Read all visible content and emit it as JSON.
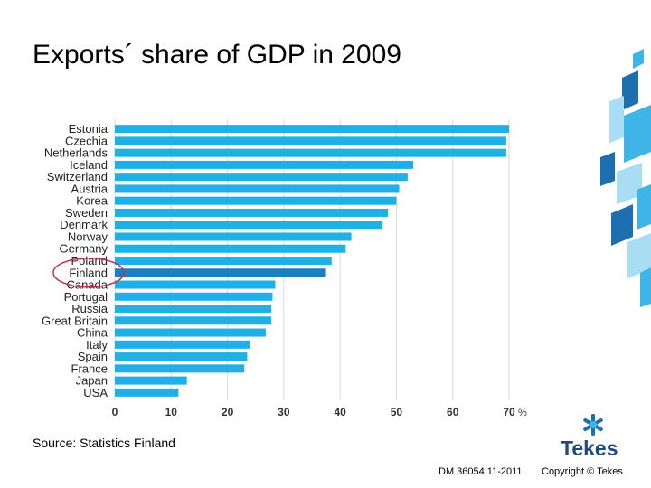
{
  "title": "Exports´ share of GDP in 2009",
  "source": "Source: Statistics Finland",
  "footer": {
    "doc_id": "DM 36054 11-2011",
    "copyright": "Copyright © Tekes"
  },
  "logo": {
    "word": "Tekes"
  },
  "colors": {
    "bar": "#1fb1e6",
    "bar_highlight": "#1b7ec2",
    "grid": "#d9d9d9",
    "highlight_ring": "#c0304a",
    "deco_light": "#a9ddf3",
    "deco_mid": "#3fb4e6",
    "deco_dark": "#1e6fb0"
  },
  "chart_data": {
    "type": "bar",
    "orientation": "horizontal",
    "title": "Exports´ share of GDP in 2009",
    "xlabel": "%",
    "xlim": [
      0,
      70
    ],
    "xticks": [
      0,
      10,
      20,
      30,
      40,
      50,
      60,
      70
    ],
    "xtick_labels": [
      "0",
      "10",
      "20",
      "30",
      "40",
      "50",
      "60",
      "70"
    ],
    "unit": "%",
    "grid": true,
    "highlighted": "Finland",
    "categories": [
      "Estonia",
      "Czechia",
      "Netherlands",
      "Iceland",
      "Switzerland",
      "Austria",
      "Korea",
      "Sweden",
      "Denmark",
      "Norway",
      "Germany",
      "Poland",
      "Finland",
      "Canada",
      "Portugal",
      "Russia",
      "Great Britain",
      "China",
      "Italy",
      "Spain",
      "France",
      "Japan",
      "USA"
    ],
    "values": [
      70,
      69.5,
      69.5,
      53,
      52,
      50.5,
      50,
      48.5,
      47.5,
      42,
      41,
      38.5,
      37.5,
      28.5,
      28,
      27.8,
      27.8,
      26.8,
      24,
      23.5,
      23,
      12.8,
      11.3
    ]
  }
}
